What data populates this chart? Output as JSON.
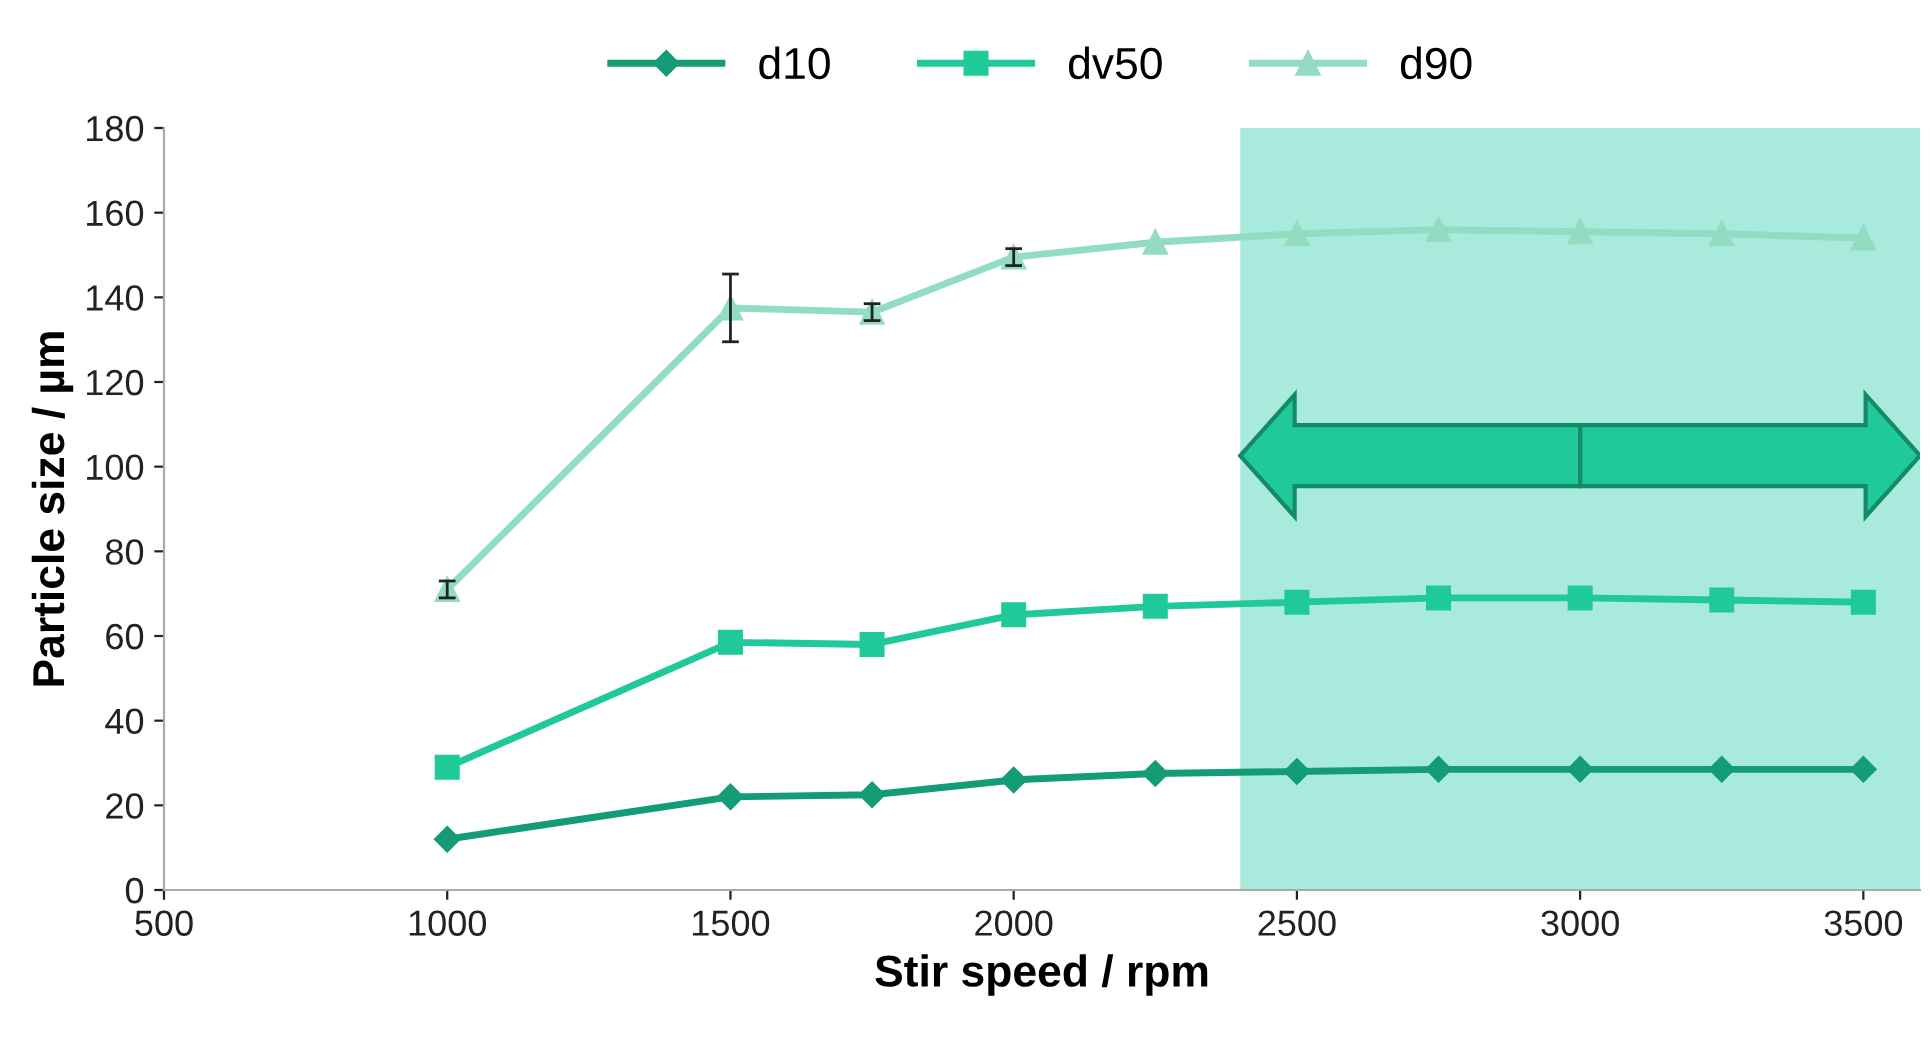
{
  "chart_data": {
    "type": "line",
    "xlabel": "Stir speed / rpm",
    "ylabel": "Particle size / µm",
    "x": [
      1000,
      1500,
      1750,
      2000,
      2250,
      2500,
      2750,
      3000,
      3250,
      3500
    ],
    "series": [
      {
        "name": "d10",
        "color": "#149c76",
        "marker": "diamond",
        "values": [
          12,
          22,
          22.5,
          26,
          27.5,
          28,
          28.5,
          28.5,
          28.5,
          28.5
        ]
      },
      {
        "name": "dv50",
        "color": "#1fc99a",
        "marker": "square",
        "values": [
          29,
          58.5,
          58,
          65,
          67,
          68,
          69,
          69,
          68.5,
          68
        ]
      },
      {
        "name": "d90",
        "color": "#92dcc2",
        "marker": "triangle",
        "values": [
          71,
          137.5,
          136.5,
          149.5,
          153,
          155,
          156,
          155.5,
          155,
          154
        ],
        "errors": [
          2,
          8,
          2,
          2,
          null,
          null,
          null,
          null,
          null,
          null
        ]
      }
    ],
    "xlim": [
      500,
      3600
    ],
    "xticks": [
      500,
      1000,
      1500,
      2000,
      2500,
      3000,
      3500
    ],
    "ylim": [
      0,
      180
    ],
    "yticks": [
      0,
      20,
      40,
      60,
      80,
      100,
      120,
      140,
      160,
      180
    ],
    "bands": [
      {
        "axis": "x",
        "from": 2400,
        "to": 3600,
        "color": "#a8eadb"
      }
    ],
    "legend": "top",
    "grid": false,
    "line_style": "solid"
  }
}
